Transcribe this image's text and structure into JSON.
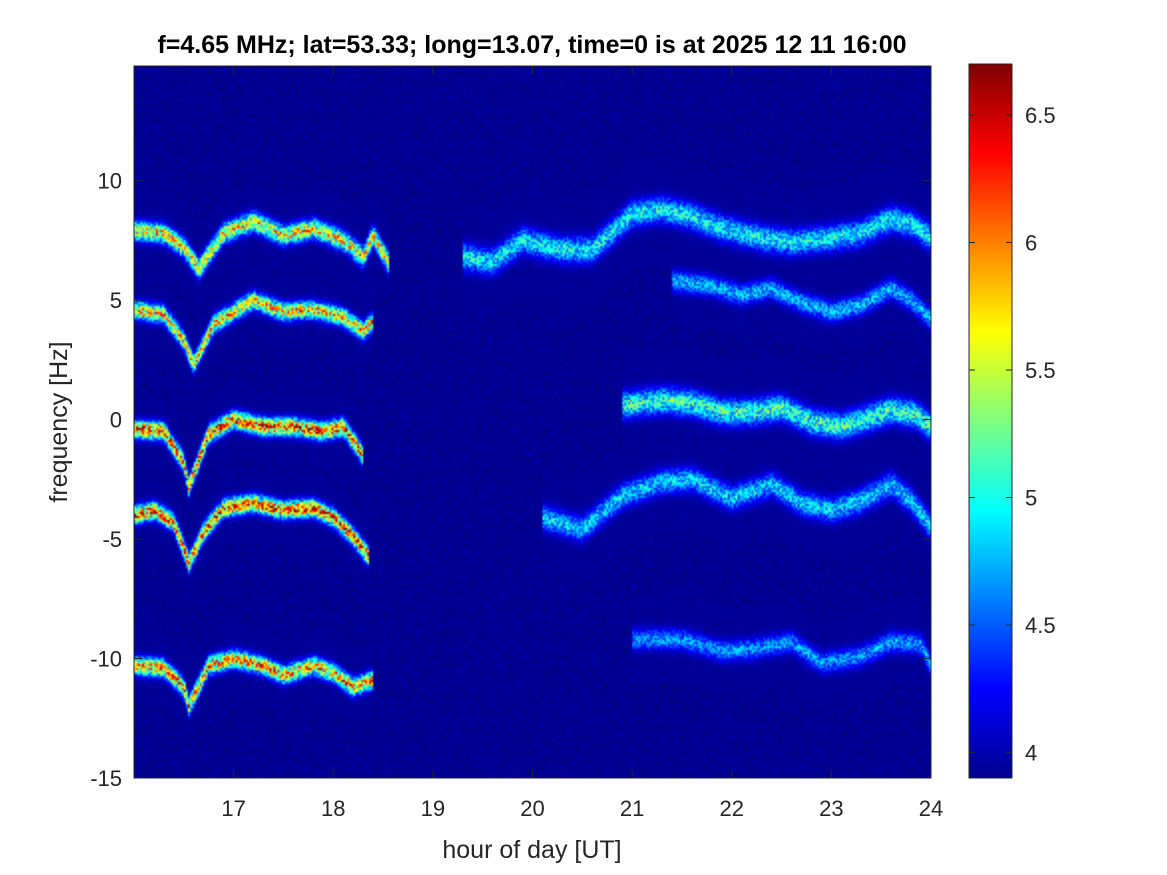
{
  "chart_data": {
    "type": "heatmap",
    "title": "f=4.65 MHz;  lat=53.33; long=13.07, time=0 is at 2025 12 11 16:00",
    "xlabel": "hour of day [UT]",
    "ylabel": "frequency [Hz]",
    "xlim": [
      16.0,
      24.0
    ],
    "ylim": [
      -15,
      14.8
    ],
    "x_ticks": [
      17,
      18,
      19,
      20,
      21,
      22,
      23,
      24
    ],
    "y_ticks": [
      -15,
      -10,
      -5,
      0,
      5,
      10
    ],
    "colorbar": {
      "colormap": "jet",
      "range": [
        3.9,
        6.7
      ],
      "ticks": [
        4,
        4.5,
        5,
        5.5,
        6,
        6.5
      ],
      "tick_labels": [
        "4",
        "4.5",
        "5",
        "5.5",
        "6",
        "6.5"
      ]
    },
    "background_level": 3.95,
    "grid": false,
    "traces": [
      {
        "name": "",
        "x": [
          16.0,
          16.3,
          16.5,
          16.65,
          16.9,
          17.2,
          17.5,
          17.8,
          18.1,
          18.3,
          18.4,
          18.55
        ],
        "y": [
          7.9,
          7.8,
          7.2,
          6.3,
          7.8,
          8.3,
          7.7,
          8.0,
          7.5,
          6.8,
          7.7,
          6.6
        ],
        "intensity": 6.0,
        "width": 0.55
      },
      {
        "name": "",
        "x": [
          16.0,
          16.3,
          16.5,
          16.6,
          16.8,
          17.2,
          17.5,
          17.8,
          18.1,
          18.3,
          18.4
        ],
        "y": [
          4.6,
          4.4,
          3.3,
          2.3,
          4.0,
          5.0,
          4.5,
          4.6,
          4.3,
          3.7,
          4.1
        ],
        "intensity": 6.1,
        "width": 0.5
      },
      {
        "name": "",
        "x": [
          16.0,
          16.3,
          16.5,
          16.55,
          16.75,
          17.0,
          17.3,
          17.6,
          17.9,
          18.1,
          18.3
        ],
        "y": [
          -0.4,
          -0.5,
          -1.8,
          -2.8,
          -0.6,
          0.0,
          -0.3,
          -0.3,
          -0.5,
          -0.3,
          -1.5
        ],
        "intensity": 6.5,
        "width": 0.5
      },
      {
        "name": "",
        "x": [
          16.0,
          16.2,
          16.4,
          16.55,
          16.7,
          16.9,
          17.2,
          17.5,
          17.8,
          18.0,
          18.2,
          18.35
        ],
        "y": [
          -4.0,
          -3.8,
          -4.3,
          -6.0,
          -4.7,
          -3.7,
          -3.5,
          -3.8,
          -3.7,
          -4.1,
          -4.9,
          -5.7
        ],
        "intensity": 6.5,
        "width": 0.5
      },
      {
        "name": "",
        "x": [
          16.0,
          16.3,
          16.5,
          16.55,
          16.75,
          17.0,
          17.3,
          17.5,
          17.8,
          18.0,
          18.2,
          18.4
        ],
        "y": [
          -10.3,
          -10.4,
          -11.2,
          -12.0,
          -10.3,
          -10.0,
          -10.3,
          -10.7,
          -10.3,
          -10.6,
          -11.2,
          -10.9
        ],
        "intensity": 6.3,
        "width": 0.5
      },
      {
        "name": "",
        "x": [
          19.3,
          19.6,
          19.9,
          20.3,
          20.6,
          21.0,
          21.3,
          21.6,
          21.9,
          22.3,
          22.6,
          23.0,
          23.3,
          23.6,
          23.8,
          24.0
        ],
        "y": [
          6.8,
          6.6,
          7.5,
          7.1,
          7.1,
          8.6,
          8.8,
          8.5,
          8.0,
          7.6,
          7.4,
          7.6,
          7.8,
          8.4,
          8.2,
          7.6
        ],
        "intensity": 5.1,
        "width": 0.75
      },
      {
        "name": "",
        "x": [
          21.4,
          21.8,
          22.1,
          22.4,
          22.7,
          23.0,
          23.3,
          23.6,
          23.8,
          24.0
        ],
        "y": [
          5.8,
          5.6,
          5.2,
          5.5,
          4.9,
          4.5,
          4.8,
          5.5,
          5.0,
          4.2
        ],
        "intensity": 4.9,
        "width": 0.6
      },
      {
        "name": "",
        "x": [
          20.9,
          21.3,
          21.6,
          21.9,
          22.2,
          22.5,
          22.8,
          23.1,
          23.4,
          23.6,
          23.85,
          24.0
        ],
        "y": [
          0.6,
          0.8,
          0.7,
          0.3,
          0.3,
          0.5,
          -0.1,
          -0.3,
          0.1,
          0.4,
          0.2,
          -0.3
        ],
        "intensity": 5.3,
        "width": 0.75
      },
      {
        "name": "",
        "x": [
          20.1,
          20.5,
          20.9,
          21.3,
          21.6,
          22.0,
          22.4,
          22.7,
          23.0,
          23.3,
          23.6,
          23.8,
          24.0
        ],
        "y": [
          -4.1,
          -4.6,
          -3.2,
          -2.6,
          -2.5,
          -3.3,
          -2.7,
          -3.5,
          -3.8,
          -3.4,
          -2.7,
          -3.4,
          -4.5
        ],
        "intensity": 5.0,
        "width": 0.7
      },
      {
        "name": "",
        "x": [
          21.0,
          21.5,
          21.9,
          22.2,
          22.6,
          22.9,
          23.3,
          23.6,
          23.9,
          24.0
        ],
        "y": [
          -9.2,
          -9.2,
          -9.7,
          -9.6,
          -9.3,
          -10.2,
          -9.9,
          -9.3,
          -9.4,
          -10.3
        ],
        "intensity": 4.8,
        "width": 0.6
      }
    ]
  }
}
